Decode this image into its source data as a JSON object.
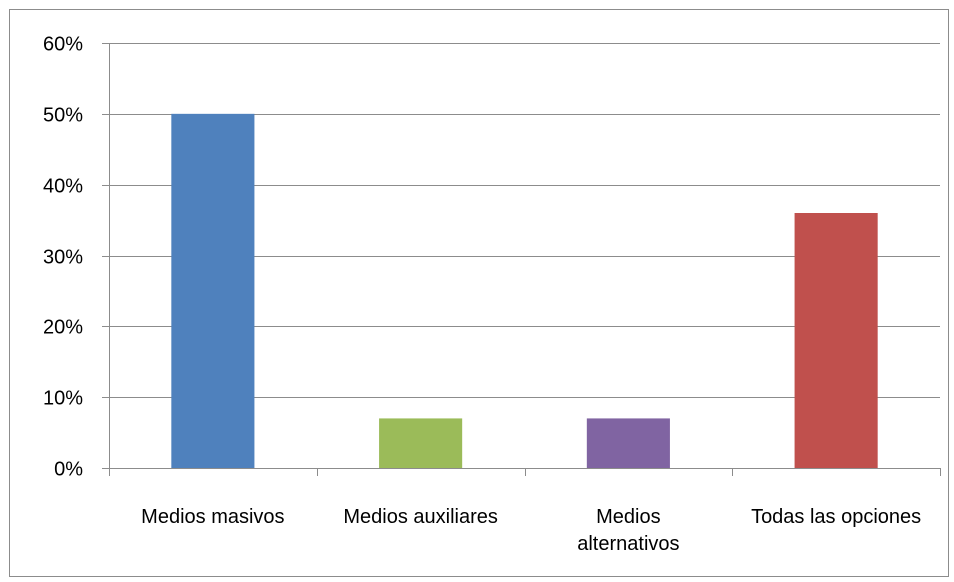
{
  "chart_data": {
    "type": "bar",
    "categories": [
      "Medios masivos",
      "Medios auxiliares",
      "Medios alternativos",
      "Todas las opciones"
    ],
    "category_label_lines": [
      [
        "Medios masivos"
      ],
      [
        "Medios auxiliares"
      ],
      [
        "Medios",
        "alternativos"
      ],
      [
        "Todas las opciones"
      ]
    ],
    "values": [
      0.5,
      0.07,
      0.07,
      0.36
    ],
    "colors": [
      "#4f81bd",
      "#9bbb59",
      "#8064a2",
      "#c0504d"
    ],
    "ylim": [
      0,
      0.6
    ],
    "yticks": [
      0,
      0.1,
      0.2,
      0.3,
      0.4,
      0.5,
      0.6
    ],
    "ytick_labels": [
      "0%",
      "10%",
      "20%",
      "30%",
      "40%",
      "50%",
      "60%"
    ],
    "grid": true,
    "legend": false,
    "title": "",
    "xlabel": "",
    "ylabel": ""
  }
}
